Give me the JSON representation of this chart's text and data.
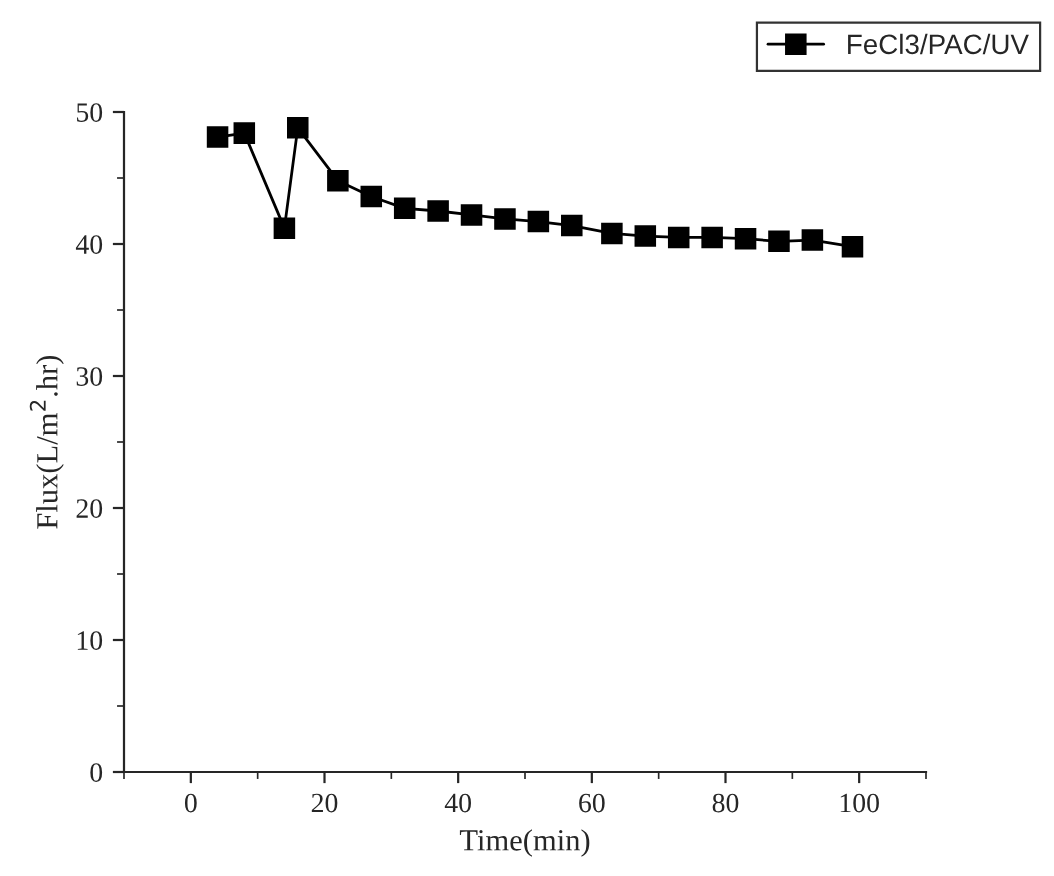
{
  "chart_data": {
    "type": "line",
    "xlabel": "Time(min)",
    "ylabel": "Flux(L/m$^{2}$.hr)",
    "x": [
      4,
      8,
      14,
      16,
      22,
      27,
      32,
      37,
      42,
      47,
      52,
      57,
      63,
      68,
      73,
      78,
      83,
      88,
      93,
      99
    ],
    "series": [
      {
        "name": "FeCl3/PAC/UV",
        "color": "#000000",
        "values": [
          48.1,
          48.4,
          41.2,
          48.8,
          44.8,
          43.6,
          42.7,
          42.5,
          42.2,
          41.9,
          41.7,
          41.4,
          40.8,
          40.6,
          40.5,
          40.5,
          40.4,
          40.2,
          40.3,
          39.8
        ]
      }
    ],
    "xlim": [
      -10,
      110
    ],
    "ylim": [
      0,
      50
    ],
    "xticks": [
      0,
      20,
      40,
      60,
      80,
      100
    ],
    "yticks": [
      0,
      10,
      20,
      30,
      40,
      50
    ],
    "marker": "square",
    "line_style": "solid",
    "grid": false,
    "legend": "top right"
  }
}
